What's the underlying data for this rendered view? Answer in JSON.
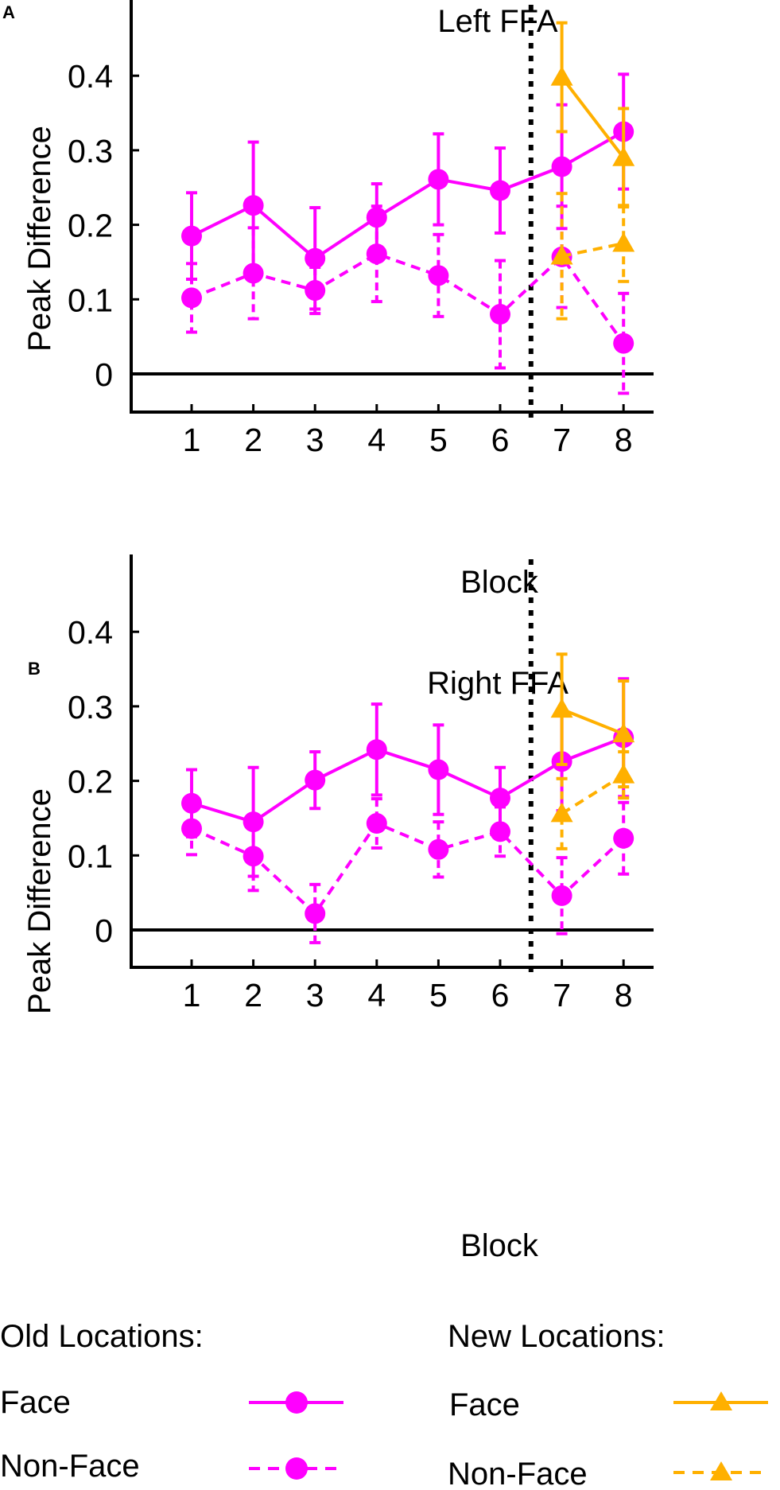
{
  "colors": {
    "old": "#ff00ff",
    "new": "#ffb000",
    "axis": "#000000",
    "divider": "#000000"
  },
  "chart_data": [
    {
      "panel": "A",
      "type": "line",
      "title": "Left FFA",
      "xlabel": "Block",
      "ylabel": "Peak Difference",
      "categories": [
        "1",
        "2",
        "3",
        "4",
        "5",
        "6",
        "7",
        "8"
      ],
      "x_ticks": [
        "1",
        "2",
        "3",
        "4",
        "5",
        "6",
        "7",
        "8"
      ],
      "y_ticks": [
        "0",
        "0.1",
        "0.2",
        "0.3",
        "0.4"
      ],
      "ylim": [
        -0.05,
        0.5
      ],
      "divider_at": 6.5,
      "series": [
        {
          "name": "Old Locations Face",
          "color": "old",
          "marker": "circle",
          "dash": false,
          "x": [
            1,
            2,
            3,
            4,
            5,
            6,
            7,
            8
          ],
          "values": [
            0.185,
            0.226,
            0.155,
            0.21,
            0.261,
            0.246,
            0.278,
            0.325
          ],
          "error": [
            0.058,
            0.085,
            0.068,
            0.045,
            0.061,
            0.057,
            0.083,
            0.077
          ]
        },
        {
          "name": "Old Locations Non-Face",
          "color": "old",
          "marker": "circle",
          "dash": true,
          "x": [
            1,
            2,
            3,
            4,
            5,
            6,
            7,
            8
          ],
          "values": [
            0.102,
            0.135,
            0.112,
            0.161,
            0.132,
            0.08,
            0.157,
            0.041
          ],
          "error": [
            0.046,
            0.061,
            0.031,
            0.064,
            0.055,
            0.072,
            0.068,
            0.067
          ]
        },
        {
          "name": "New Locations Face",
          "color": "new",
          "marker": "triangle",
          "dash": false,
          "x": [
            7,
            8
          ],
          "values": [
            0.398,
            0.29
          ],
          "error": [
            0.073,
            0.066
          ]
        },
        {
          "name": "New Locations Non-Face",
          "color": "new",
          "marker": "triangle",
          "dash": true,
          "x": [
            7,
            8
          ],
          "values": [
            0.158,
            0.175
          ],
          "error": [
            0.084,
            0.051
          ]
        }
      ]
    },
    {
      "panel": "B",
      "type": "line",
      "title": "Right FFA",
      "xlabel": "Block",
      "ylabel": "Peak Difference",
      "categories": [
        "1",
        "2",
        "3",
        "4",
        "5",
        "6",
        "7",
        "8"
      ],
      "x_ticks": [
        "1",
        "2",
        "3",
        "4",
        "5",
        "6",
        "7",
        "8"
      ],
      "y_ticks": [
        "0",
        "0.1",
        "0.2",
        "0.3",
        "0.4"
      ],
      "ylim": [
        -0.05,
        0.5
      ],
      "divider_at": 6.5,
      "series": [
        {
          "name": "Old Locations Face",
          "color": "old",
          "marker": "circle",
          "dash": false,
          "x": [
            1,
            2,
            3,
            4,
            5,
            6,
            7,
            8
          ],
          "values": [
            0.17,
            0.145,
            0.201,
            0.242,
            0.215,
            0.177,
            0.226,
            0.258
          ],
          "error": [
            0.045,
            0.073,
            0.038,
            0.061,
            0.06,
            0.041,
            0.066,
            0.079
          ]
        },
        {
          "name": "Old Locations Non-Face",
          "color": "old",
          "marker": "circle",
          "dash": true,
          "x": [
            1,
            2,
            3,
            4,
            5,
            6,
            7,
            8
          ],
          "values": [
            0.136,
            0.099,
            0.022,
            0.143,
            0.108,
            0.132,
            0.046,
            0.123
          ],
          "error": [
            0.035,
            0.046,
            0.039,
            0.033,
            0.037,
            0.033,
            0.051,
            0.048
          ]
        },
        {
          "name": "New Locations Face",
          "color": "new",
          "marker": "triangle",
          "dash": false,
          "x": [
            7,
            8
          ],
          "values": [
            0.296,
            0.263
          ],
          "error": [
            0.074,
            0.071
          ]
        },
        {
          "name": "New Locations Non-Face",
          "color": "new",
          "marker": "triangle",
          "dash": true,
          "x": [
            7,
            8
          ],
          "values": [
            0.156,
            0.208
          ],
          "error": [
            0.047,
            0.031
          ]
        }
      ]
    }
  ],
  "legend": {
    "old_heading": "Old Locations:",
    "new_heading": "New Locations:",
    "old_face": "Face",
    "old_nonface": "Non-Face",
    "new_face": "Face",
    "new_nonface": "Non-Face"
  }
}
